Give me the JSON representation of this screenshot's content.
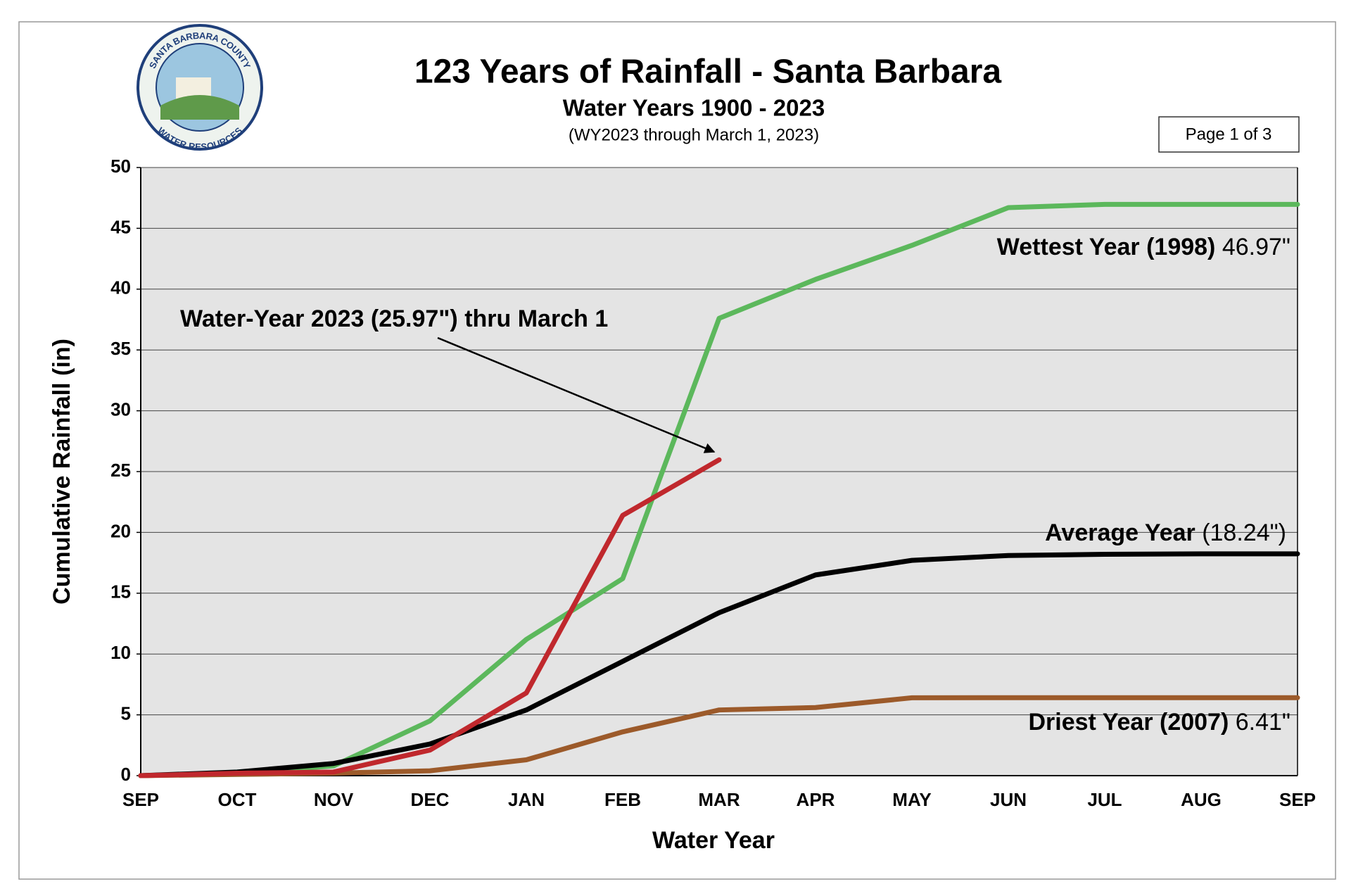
{
  "chart_data": {
    "type": "line",
    "title": "123 Years of Rainfall - Santa Barbara",
    "subtitle": "Water Years 1900 - 2023",
    "note": "(WY2023 through March 1, 2023)",
    "page_label": "Page 1 of 3",
    "logo_text": [
      "SANTA BARBARA COUNTY",
      "WATER RESOURCES"
    ],
    "x_label": "Water Year",
    "y_label": "Cumulative Rainfall (in)",
    "categories": [
      "SEP",
      "OCT",
      "NOV",
      "DEC",
      "JAN",
      "FEB",
      "MAR",
      "APR",
      "MAY",
      "JUN",
      "JUL",
      "AUG",
      "SEP"
    ],
    "ylim": [
      0,
      50
    ],
    "yticks": [
      0,
      5,
      10,
      15,
      20,
      25,
      30,
      35,
      40,
      45,
      50
    ],
    "grid": true,
    "series": [
      {
        "name": "Wettest Year (1998)",
        "color": "#5cb85c",
        "values": [
          0,
          0.2,
          0.8,
          4.5,
          11.2,
          16.2,
          37.6,
          40.8,
          43.6,
          46.7,
          46.97,
          46.97,
          46.97
        ]
      },
      {
        "name": "Average Year",
        "color": "#000000",
        "values": [
          0,
          0.3,
          1.0,
          2.6,
          5.4,
          9.4,
          13.4,
          16.5,
          17.7,
          18.1,
          18.2,
          18.24,
          18.24
        ]
      },
      {
        "name": "Driest Year (2007)",
        "color": "#9c5a2a",
        "values": [
          0,
          0.1,
          0.2,
          0.4,
          1.3,
          3.6,
          5.4,
          5.6,
          6.4,
          6.41,
          6.41,
          6.41,
          6.41
        ]
      },
      {
        "name": "Water-Year 2023",
        "color": "#c0282d",
        "values": [
          0,
          0.2,
          0.3,
          2.1,
          6.8,
          21.4,
          25.97,
          null,
          null,
          null,
          null,
          null,
          null
        ]
      }
    ],
    "annotations": [
      {
        "bold": "Water-Year 2023 (25.97\") thru March 1"
      },
      {
        "bold": "Wettest Year (1998)",
        "text": " 46.97\""
      },
      {
        "bold": "Average Year",
        "text": " (18.24\")"
      },
      {
        "bold": "Driest Year (2007)",
        "text": " 6.41\""
      }
    ]
  }
}
